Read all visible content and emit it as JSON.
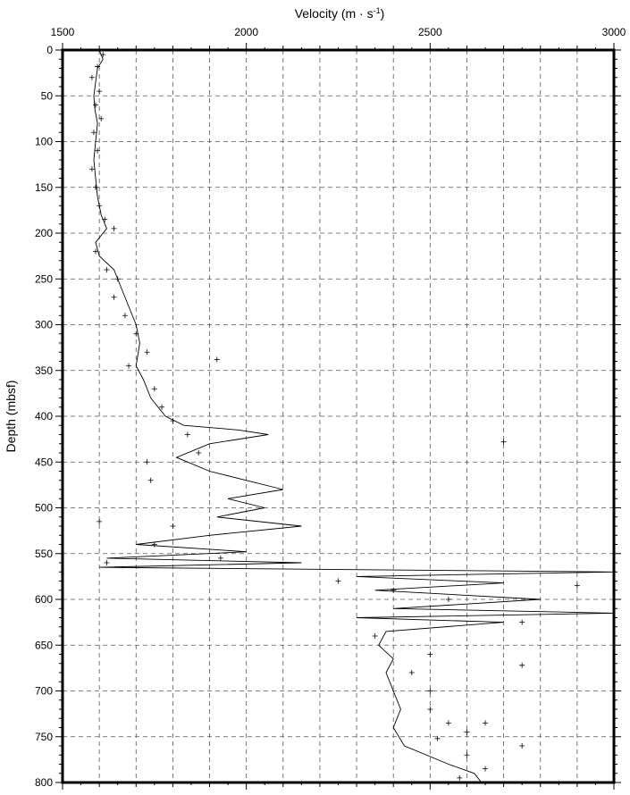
{
  "chart_data": {
    "type": "scatter",
    "title": "",
    "xlabel": "Velocity (m · s",
    "xlabel_sup": "-1",
    "xlabel_close": ")",
    "ylabel": "Depth (mbsf)",
    "xlim": [
      1500,
      3000
    ],
    "ylim": [
      0,
      800
    ],
    "y_inverted": true,
    "x_axis_position": "top",
    "grid": true,
    "x_ticks": [
      1500,
      2000,
      2500,
      3000
    ],
    "x_tick_labels": [
      "1500",
      "2000",
      "2500",
      "3000"
    ],
    "y_ticks": [
      0,
      50,
      100,
      150,
      200,
      250,
      300,
      350,
      400,
      450,
      500,
      550,
      600,
      650,
      700,
      750,
      800
    ],
    "y_tick_labels": [
      "0",
      "50",
      "100",
      "150",
      "200",
      "250",
      "300",
      "350",
      "400",
      "450",
      "500",
      "550",
      "600",
      "650",
      "700",
      "750",
      "800"
    ],
    "series": [
      {
        "style": "line",
        "points": [
          [
            1600,
            0
          ],
          [
            1610,
            10
          ],
          [
            1595,
            20
          ],
          [
            1590,
            35
          ],
          [
            1585,
            50
          ],
          [
            1588,
            65
          ],
          [
            1595,
            80
          ],
          [
            1590,
            100
          ],
          [
            1585,
            120
          ],
          [
            1590,
            140
          ],
          [
            1595,
            160
          ],
          [
            1605,
            180
          ],
          [
            1620,
            195
          ],
          [
            1590,
            210
          ],
          [
            1600,
            225
          ],
          [
            1640,
            240
          ],
          [
            1660,
            260
          ],
          [
            1680,
            280
          ],
          [
            1700,
            300
          ],
          [
            1710,
            320
          ],
          [
            1700,
            345
          ],
          [
            1720,
            360
          ],
          [
            1740,
            380
          ],
          [
            1780,
            400
          ],
          [
            1830,
            410
          ],
          [
            1980,
            415
          ],
          [
            2060,
            420
          ],
          [
            1900,
            430
          ],
          [
            1810,
            445
          ],
          [
            1900,
            460
          ],
          [
            2000,
            470
          ],
          [
            2100,
            480
          ],
          [
            1950,
            490
          ],
          [
            2050,
            500
          ],
          [
            1920,
            510
          ],
          [
            2150,
            520
          ],
          [
            1900,
            530
          ],
          [
            1700,
            540
          ],
          [
            2000,
            548
          ],
          [
            1620,
            555
          ],
          [
            2150,
            560
          ],
          [
            1600,
            565
          ],
          [
            3000,
            570
          ],
          [
            2300,
            575
          ],
          [
            2700,
            582
          ],
          [
            2350,
            590
          ],
          [
            2800,
            600
          ],
          [
            2400,
            610
          ],
          [
            3000,
            615
          ],
          [
            2300,
            620
          ],
          [
            2700,
            625
          ],
          [
            2380,
            635
          ],
          [
            2360,
            650
          ],
          [
            2400,
            665
          ],
          [
            2380,
            680
          ],
          [
            2400,
            700
          ],
          [
            2420,
            720
          ],
          [
            2400,
            740
          ],
          [
            2430,
            760
          ],
          [
            2550,
            780
          ],
          [
            2620,
            790
          ],
          [
            2640,
            800
          ]
        ]
      },
      {
        "style": "plus",
        "points": [
          [
            1610,
            5
          ],
          [
            1595,
            18
          ],
          [
            1580,
            30
          ],
          [
            1600,
            45
          ],
          [
            1590,
            60
          ],
          [
            1605,
            75
          ],
          [
            1585,
            90
          ],
          [
            1595,
            110
          ],
          [
            1580,
            130
          ],
          [
            1590,
            150
          ],
          [
            1600,
            170
          ],
          [
            1615,
            185
          ],
          [
            1640,
            195
          ],
          [
            1590,
            220
          ],
          [
            1620,
            240
          ],
          [
            1650,
            250
          ],
          [
            1640,
            270
          ],
          [
            1670,
            290
          ],
          [
            1700,
            310
          ],
          [
            1730,
            330
          ],
          [
            1680,
            345
          ],
          [
            1750,
            370
          ],
          [
            1770,
            390
          ],
          [
            1800,
            405
          ],
          [
            1840,
            420
          ],
          [
            1870,
            440
          ],
          [
            1920,
            338
          ],
          [
            2700,
            428
          ],
          [
            1730,
            450
          ],
          [
            1740,
            470
          ],
          [
            1800,
            520
          ],
          [
            1600,
            515
          ],
          [
            1750,
            540
          ],
          [
            1620,
            560
          ],
          [
            1930,
            555
          ],
          [
            2250,
            580
          ],
          [
            2400,
            590
          ],
          [
            2550,
            600
          ],
          [
            2900,
            585
          ],
          [
            2750,
            625
          ],
          [
            2350,
            640
          ],
          [
            2500,
            660
          ],
          [
            2750,
            672
          ],
          [
            2450,
            680
          ],
          [
            2500,
            700
          ],
          [
            2500,
            720
          ],
          [
            2550,
            735
          ],
          [
            2650,
            735
          ],
          [
            2600,
            745
          ],
          [
            2750,
            760
          ],
          [
            2520,
            752
          ],
          [
            2600,
            770
          ],
          [
            2650,
            785
          ],
          [
            2580,
            795
          ]
        ]
      }
    ]
  }
}
